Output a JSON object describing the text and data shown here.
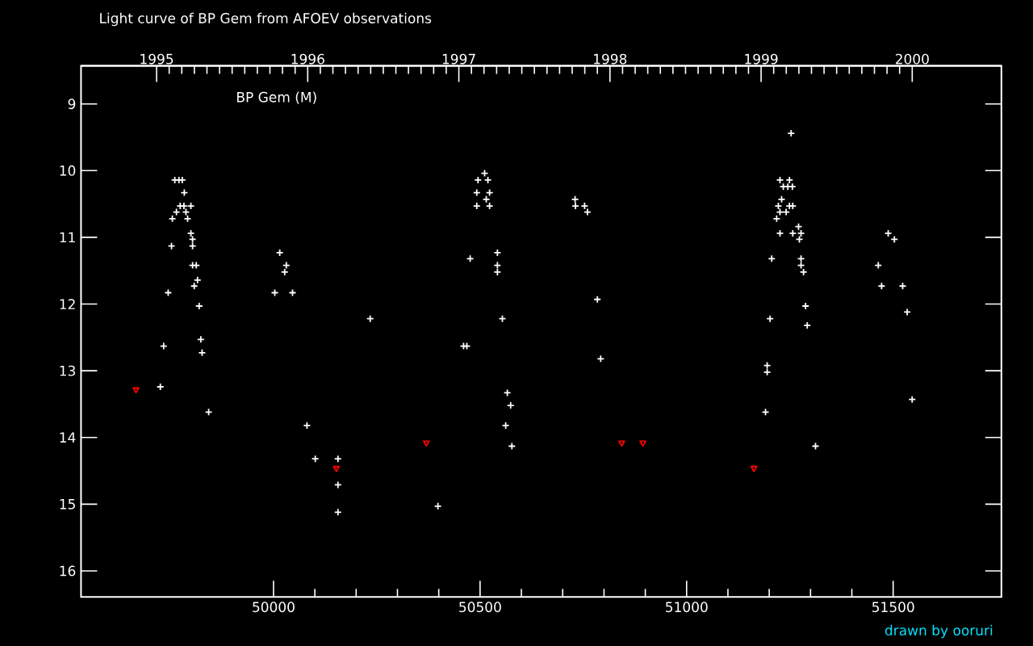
{
  "chart_data": {
    "type": "scatter",
    "title": "Light curve of BP Gem from AFOEV observations",
    "annotations": [
      "BP Gem (M)",
      "drawn by ooruri"
    ],
    "series": [
      {
        "color": "#ffffff",
        "marker": "cross",
        "x": [
          49761,
          49771,
          49779,
          49784,
          49774,
          49783,
          49800,
          49765,
          49788,
          49755,
          49792,
          49800,
          49804,
          49753,
          49804,
          49804,
          49813,
          49816,
          49808,
          49745,
          49820,
          49734,
          49824,
          49827,
          49726,
          49843,
          50015,
          50031,
          50027,
          50003,
          50046,
          50234,
          50081,
          50101,
          50156,
          50156,
          50156,
          50511,
          50495,
          50519,
          50492,
          50523,
          50515,
          50492,
          50523,
          50730,
          50731,
          50753,
          50760,
          50542,
          50476,
          50542,
          50542,
          50784,
          50554,
          50460,
          50468,
          50792,
          50566,
          50574,
          50562,
          50577,
          50398,
          51253,
          51226,
          51249,
          51234,
          51245,
          51256,
          51230,
          51222,
          51249,
          51257,
          51226,
          51241,
          51218,
          51271,
          51226,
          51257,
          51277,
          51273,
          51206,
          51277,
          51277,
          51283,
          51288,
          51202,
          51292,
          51195,
          51195,
          51191,
          51312,
          51488,
          51503,
          51464,
          51472,
          51523,
          51534,
          51546
        ],
        "values": [
          10.14,
          10.14,
          10.14,
          10.33,
          10.53,
          10.53,
          10.53,
          10.62,
          10.62,
          10.72,
          10.72,
          10.94,
          11.03,
          11.13,
          11.13,
          11.42,
          11.42,
          11.64,
          11.73,
          11.83,
          12.03,
          12.63,
          12.53,
          12.73,
          13.24,
          13.62,
          11.23,
          11.42,
          11.52,
          11.83,
          11.83,
          12.22,
          13.82,
          14.32,
          14.32,
          14.71,
          15.12,
          10.04,
          10.14,
          10.14,
          10.33,
          10.33,
          10.43,
          10.53,
          10.53,
          10.43,
          10.53,
          10.53,
          10.62,
          11.23,
          11.32,
          11.42,
          11.52,
          11.93,
          12.22,
          12.63,
          12.63,
          12.82,
          13.33,
          13.52,
          13.82,
          14.13,
          15.03,
          9.44,
          10.14,
          10.14,
          10.24,
          10.24,
          10.24,
          10.43,
          10.53,
          10.53,
          10.53,
          10.62,
          10.62,
          10.72,
          10.84,
          10.94,
          10.94,
          10.94,
          11.03,
          11.32,
          11.32,
          11.42,
          11.52,
          12.03,
          12.22,
          12.32,
          12.92,
          13.02,
          13.62,
          14.13,
          10.94,
          11.03,
          11.42,
          11.73,
          11.73,
          12.12,
          13.43
        ]
      },
      {
        "color": "#ff0000",
        "marker": "triangle",
        "x": [
          49667,
          50152,
          50370,
          50843,
          50894,
          51163
        ],
        "values": [
          13.28,
          14.46,
          14.08,
          14.08,
          14.08,
          14.46
        ]
      }
    ],
    "xlim": [
      49534,
      51762
    ],
    "xticks": [
      50000,
      50500,
      51000,
      51500
    ],
    "x2lim": [
      1994.5,
      2000.59
    ],
    "x2ticks": [
      1995,
      1996,
      1997,
      1998,
      1999,
      2000
    ],
    "ylim": [
      16.39,
      8.43
    ],
    "yticks": [
      9,
      10,
      11,
      12,
      13,
      14,
      15,
      16
    ],
    "grid": false
  }
}
